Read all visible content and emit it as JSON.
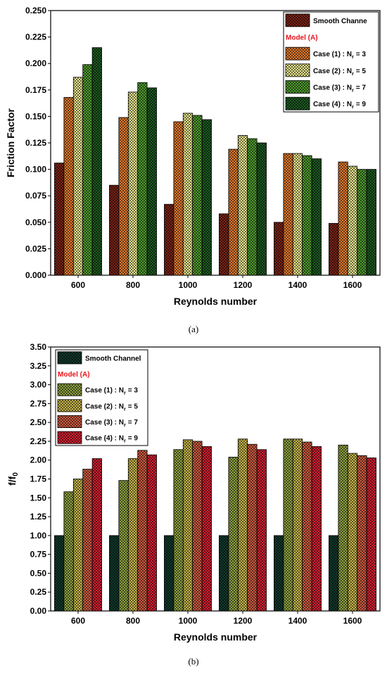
{
  "chart_data": [
    {
      "type": "bar",
      "categories": [
        "600",
        "800",
        "1000",
        "1200",
        "1400",
        "1600"
      ],
      "xlabel": "Reynolds number",
      "ylabel": "Friction Factor",
      "ylim": [
        0,
        0.25
      ],
      "yticks": [
        "0.000",
        "0.025",
        "0.050",
        "0.075",
        "0.100",
        "0.125",
        "0.150",
        "0.175",
        "0.200",
        "0.225",
        "0.250"
      ],
      "caption": "(a)",
      "legend_position": "top-right",
      "legend_header": "Model (A)",
      "series": [
        {
          "name": "Smooth Channe",
          "color": "#7b2418",
          "values": [
            0.106,
            0.085,
            0.067,
            0.058,
            0.05,
            0.049
          ]
        },
        {
          "name": "Case (1) : N",
          "sub": "r",
          "suffix": " = 3",
          "color": "#e07a2c",
          "values": [
            0.168,
            0.149,
            0.145,
            0.119,
            0.115,
            0.107
          ]
        },
        {
          "name": "Case (2) : N",
          "sub": "r",
          "suffix": " = 5",
          "color": "#e6e48e",
          "values": [
            0.187,
            0.173,
            0.153,
            0.132,
            0.115,
            0.103
          ]
        },
        {
          "name": "Case (3) : N",
          "sub": "r",
          "suffix": " = 7",
          "color": "#4f9a2e",
          "values": [
            0.199,
            0.182,
            0.151,
            0.129,
            0.113,
            0.1
          ]
        },
        {
          "name": "Case (4) : N",
          "sub": "r",
          "suffix": " = 9",
          "color": "#1d5a22",
          "values": [
            0.215,
            0.177,
            0.147,
            0.125,
            0.11,
            0.1
          ]
        }
      ]
    },
    {
      "type": "bar",
      "categories": [
        "600",
        "800",
        "1000",
        "1200",
        "1400",
        "1600"
      ],
      "xlabel": "Reynolds number",
      "ylabel": "f/f",
      "ylabel_sub": "0",
      "ylim": [
        0,
        3.5
      ],
      "yticks": [
        "0.00",
        "0.25",
        "0.50",
        "0.75",
        "1.00",
        "1.25",
        "1.50",
        "1.75",
        "2.00",
        "2.25",
        "2.50",
        "2.75",
        "3.00",
        "3.25",
        "3.50"
      ],
      "caption": "(b)",
      "legend_position": "top-left",
      "legend_header": "Model (A)",
      "series": [
        {
          "name": "Smooth Channel",
          "color": "#123a2c",
          "values": [
            1.0,
            1.0,
            1.0,
            1.0,
            1.0,
            1.0
          ]
        },
        {
          "name": "Case (1) : N",
          "sub": "r",
          "suffix": " = 3",
          "color": "#8ca040",
          "values": [
            1.58,
            1.73,
            2.14,
            2.04,
            2.28,
            2.2
          ]
        },
        {
          "name": "Case (2) : N",
          "sub": "r",
          "suffix": " = 5",
          "color": "#c4b44a",
          "values": [
            1.75,
            2.02,
            2.27,
            2.28,
            2.28,
            2.09
          ]
        },
        {
          "name": "Case (3) : N",
          "sub": "r",
          "suffix": " = 7",
          "color": "#cc5a40",
          "values": [
            1.88,
            2.13,
            2.25,
            2.21,
            2.24,
            2.06
          ]
        },
        {
          "name": "Case (4) : N",
          "sub": "r",
          "suffix": " = 9",
          "color": "#d41f32",
          "values": [
            2.02,
            2.07,
            2.18,
            2.14,
            2.18,
            2.03
          ]
        }
      ]
    }
  ]
}
